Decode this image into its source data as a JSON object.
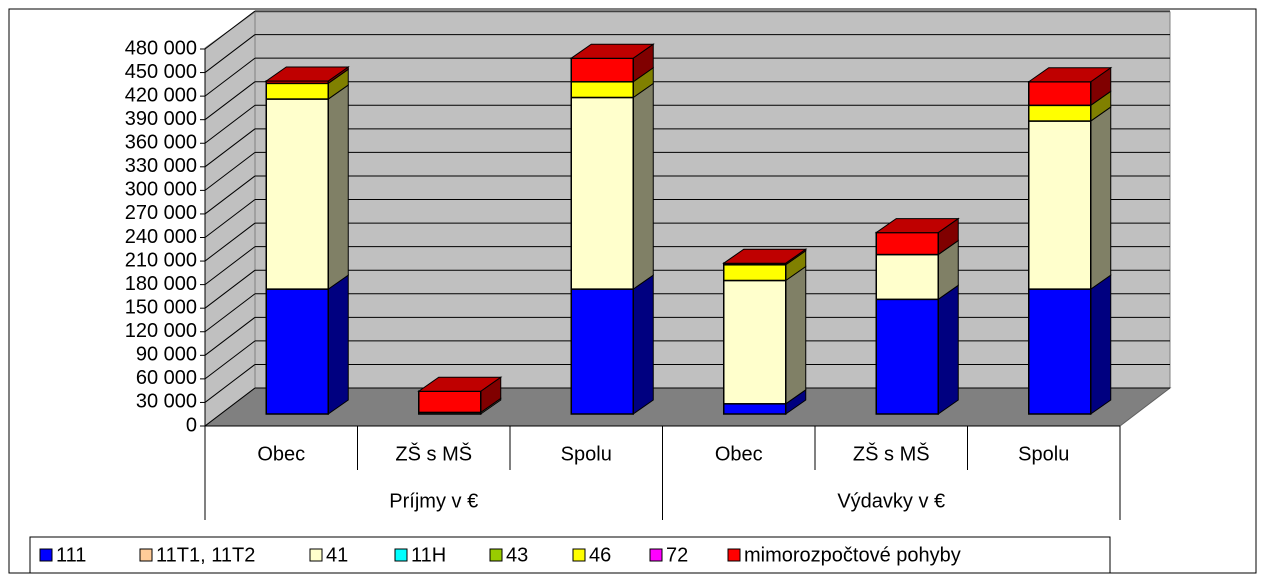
{
  "chart_data": {
    "type": "bar3d_stacked",
    "categories": [
      "Obec",
      "ZŠ s MŠ",
      "Spolu",
      "Obec",
      "ZŠ s MŠ",
      "Spolu"
    ],
    "category_groups": [
      "Príjmy v €",
      "Výdavky v €"
    ],
    "series": [
      {
        "name": "111",
        "color": "#0000ff",
        "values": [
          159000,
          0,
          159000,
          13000,
          146000,
          159000
        ]
      },
      {
        "name": "11T1, 11T2",
        "color": "#ffcc99",
        "values": [
          0,
          0,
          0,
          0,
          0,
          0
        ]
      },
      {
        "name": "41",
        "color": "#ffffcc",
        "values": [
          242000,
          2000,
          244000,
          157000,
          57000,
          214000
        ]
      },
      {
        "name": "11H",
        "color": "#00ffff",
        "values": [
          0,
          0,
          0,
          0,
          0,
          0
        ]
      },
      {
        "name": "43",
        "color": "#99cc00",
        "values": [
          0,
          0,
          0,
          0,
          0,
          0
        ]
      },
      {
        "name": "46",
        "color": "#ffff00",
        "values": [
          20000,
          0,
          20000,
          20000,
          0,
          20000
        ]
      },
      {
        "name": "72",
        "color": "#ff00ff",
        "values": [
          0,
          0,
          0,
          0,
          0,
          0
        ]
      },
      {
        "name": "mimorozpočtové pohyby",
        "color": "#ff0000",
        "values": [
          3000,
          27000,
          30000,
          2000,
          28000,
          30000
        ]
      }
    ],
    "ylim": [
      0,
      480000
    ],
    "yticks": [
      0,
      {
        "value": 30000,
        "label": "30 000"
      },
      {
        "value": 60000,
        "label": "60 000"
      },
      {
        "value": 90000,
        "label": "90 000"
      },
      {
        "value": 120000,
        "label": "120 000"
      },
      {
        "value": 150000,
        "label": "150 000"
      },
      {
        "value": 180000,
        "label": "180 000"
      },
      {
        "value": 210000,
        "label": "210 000"
      },
      {
        "value": 240000,
        "label": "240 000"
      },
      {
        "value": 270000,
        "label": "270 000"
      },
      {
        "value": 300000,
        "label": "300 000"
      },
      {
        "value": 330000,
        "label": "330 000"
      },
      {
        "value": 360000,
        "label": "360 000"
      },
      {
        "value": 390000,
        "label": "390 000"
      },
      {
        "value": 420000,
        "label": "420 000"
      },
      {
        "value": 450000,
        "label": "450 000"
      },
      {
        "value": 480000,
        "label": "480 000"
      }
    ],
    "grid": true
  }
}
